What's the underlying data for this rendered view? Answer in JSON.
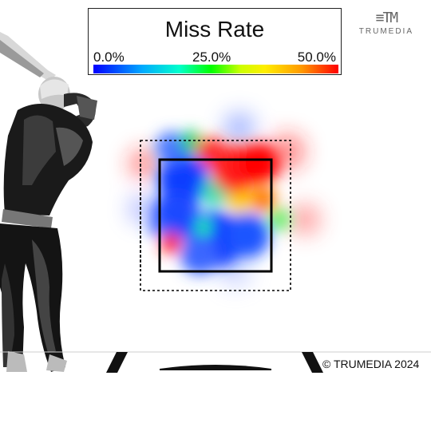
{
  "chart_data": {
    "type": "heatmap",
    "title": "Miss Rate",
    "colorbar": {
      "ticks": [
        "0.0%",
        "25.0%",
        "50.0%"
      ],
      "min": 0.0,
      "max": 0.5,
      "colors": [
        "#0000ff",
        "#00aaff",
        "#00ffcc",
        "#00ff00",
        "#ccff00",
        "#ffee00",
        "#ff9900",
        "#ff0000"
      ]
    },
    "grid": false,
    "legend_position": "top-center"
  },
  "brand": {
    "name": "TRUMEDIA",
    "mark": "≡TM"
  },
  "footer": {
    "copyright": "© TRUMEDIA 2024"
  }
}
